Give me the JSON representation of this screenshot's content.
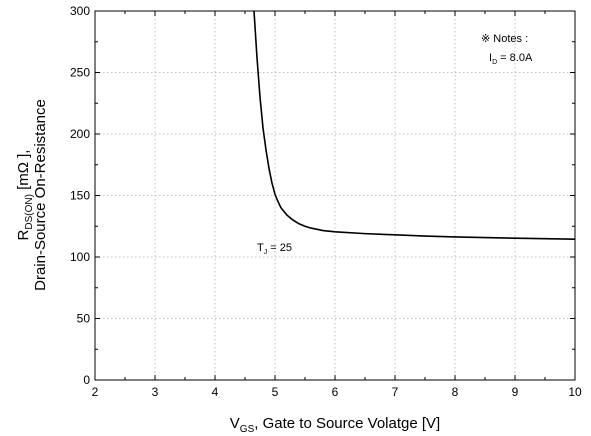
{
  "chart_data": {
    "type": "line",
    "x_axis": {
      "label_main": "V",
      "label_sub": "GS",
      "label_rest": ", Gate to Source Volatge [V]",
      "range": [
        2,
        10
      ],
      "ticks": [
        "2",
        "3",
        "4",
        "5",
        "6",
        "7",
        "8",
        "9",
        "10"
      ]
    },
    "y_axis": {
      "line1_main": "R",
      "line1_sub": "DS(ON)",
      "line1_rest": " [mΩ ],",
      "line2": "Drain-Source On-Resistance",
      "range": [
        0,
        300
      ],
      "ticks": [
        "0",
        "50",
        "100",
        "150",
        "200",
        "250",
        "300"
      ]
    },
    "grid": true,
    "series": [
      {
        "x": [
          4.65,
          4.7,
          4.75,
          4.8,
          4.85,
          4.9,
          4.95,
          5.0,
          5.05,
          5.1,
          5.2,
          5.3,
          5.4,
          5.5,
          5.6,
          5.8,
          6.0,
          6.5,
          7.0,
          7.5,
          8.0,
          8.5,
          9.0,
          9.5,
          10.0
        ],
        "y": [
          300,
          262,
          230,
          205,
          187,
          172,
          160,
          151,
          145,
          140,
          134,
          130,
          127,
          125,
          123.5,
          121.5,
          120.5,
          119,
          118,
          117,
          116.3,
          115.8,
          115.3,
          114.9,
          114.5
        ],
        "color": "#000000"
      }
    ],
    "annotations": {
      "notes_title": "※ Notes :",
      "notes_id_main": "I",
      "notes_id_sub": "D",
      "notes_id_rest": " = 8.0A",
      "tj_main": "T",
      "tj_sub": "J",
      "tj_rest": " = 25"
    }
  }
}
